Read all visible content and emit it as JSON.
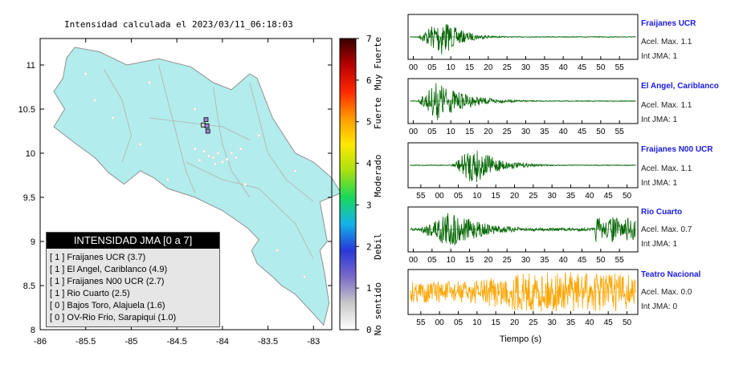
{
  "map": {
    "title": "Intensidad calculada el 2023/03/11_06:18:03",
    "x_ticks": [
      "-86",
      "-85.5",
      "-85",
      "-84.5",
      "-84",
      "-83.5",
      "-83"
    ],
    "y_ticks": [
      "11",
      "10.5",
      "10",
      "9.5",
      "9",
      "8.5",
      "8"
    ],
    "xlim": [
      -86,
      -82.8
    ],
    "ylim": [
      8,
      11.3
    ],
    "land_color": "#b3ecec",
    "stations": [
      {
        "lon": -84.21,
        "lat": 10.32,
        "fill": "#cfcfcf"
      },
      {
        "lon": -84.18,
        "lat": 10.38,
        "fill": "#9a86cf"
      },
      {
        "lon": -84.17,
        "lat": 10.31,
        "fill": "#9a86cf"
      },
      {
        "lon": -84.16,
        "lat": 10.25,
        "fill": "#9a86cf"
      }
    ]
  },
  "colorbar": {
    "ticks": [
      "0",
      "1",
      "2",
      "3",
      "4",
      "5",
      "6",
      "7"
    ],
    "labels": [
      "No sentido",
      "Debil",
      "Moderado",
      "Fuerte",
      "Muy Fuerte"
    ],
    "colors": [
      "#ffffff",
      "#c8c8c8",
      "#7a6ac8",
      "#2838d8",
      "#12b4e8",
      "#18d858",
      "#a8e010",
      "#ffe800",
      "#ff9a00",
      "#ff2800",
      "#b80000",
      "#380000"
    ]
  },
  "legend": {
    "title": "INTENSIDAD JMA [0 a 7]",
    "items": [
      "[ 1 ]  Fraijanes UCR (3.7)",
      "[ 1 ]  El Angel, Cariblanco (4.9)",
      "[ 1 ]  Fraijanes N00 UCR (2.7)",
      "[ 1 ]  Rio Cuarto (2.5)",
      "[ 0 ]  Bajos Toro, Alajuela (1.6)",
      "[ 0 ]  OV-Rio Frio, Sarapiqui (1.0)"
    ]
  },
  "chart_data": {
    "type": "line",
    "xlabel": "Tiempo (s)",
    "panels": [
      {
        "station": "Fraijanes UCR",
        "acel": "Acel. Max. 1.1",
        "jma": "Int JMA: 1",
        "color": "#006400",
        "ticks": [
          "00",
          "05",
          "10",
          "15",
          "20",
          "25",
          "30",
          "35",
          "40",
          "45",
          "50",
          "55"
        ],
        "onset": 0.03,
        "peak": 0.14,
        "decay": 0.08,
        "noise": 0.02
      },
      {
        "station": "El Angel, Cariblanco",
        "acel": "Acel. Max. 1.1",
        "jma": "Int JMA: 1",
        "color": "#006400",
        "ticks": [
          "00",
          "05",
          "10",
          "15",
          "20",
          "25",
          "30",
          "35",
          "40",
          "45",
          "50",
          "55"
        ],
        "onset": 0.03,
        "peak": 0.12,
        "decay": 0.12,
        "noise": 0.02
      },
      {
        "station": "Fraijanes N00 UCR",
        "acel": "Acel. Max. 1.1",
        "jma": "Int JMA: 1",
        "color": "#006400",
        "ticks": [
          "55",
          "00",
          "05",
          "10",
          "15",
          "20",
          "25",
          "30",
          "35",
          "40",
          "45",
          "50"
        ],
        "onset": 0.18,
        "peak": 0.28,
        "decay": 0.1,
        "noise": 0.02
      },
      {
        "station": "Rio Cuarto",
        "acel": "Acel. Max. 0.7",
        "jma": "Int JMA: 1",
        "color": "#006400",
        "ticks": [
          "00",
          "05",
          "10",
          "15",
          "20",
          "25",
          "30",
          "35",
          "40",
          "45",
          "50",
          "55"
        ],
        "onset": 0.03,
        "peak": 0.17,
        "decay": 0.14,
        "noise": 0.08
      },
      {
        "station": "Teatro Nacional",
        "acel": "Acel. Max. 0.0",
        "jma": "Int JMA: 0",
        "color": "#ffa500",
        "ticks": [
          "55",
          "00",
          "05",
          "10",
          "15",
          "20",
          "25",
          "30",
          "35",
          "40",
          "45",
          "50"
        ],
        "onset": 0.0,
        "peak": 0.5,
        "decay": 9,
        "noise": 0.55
      }
    ]
  }
}
